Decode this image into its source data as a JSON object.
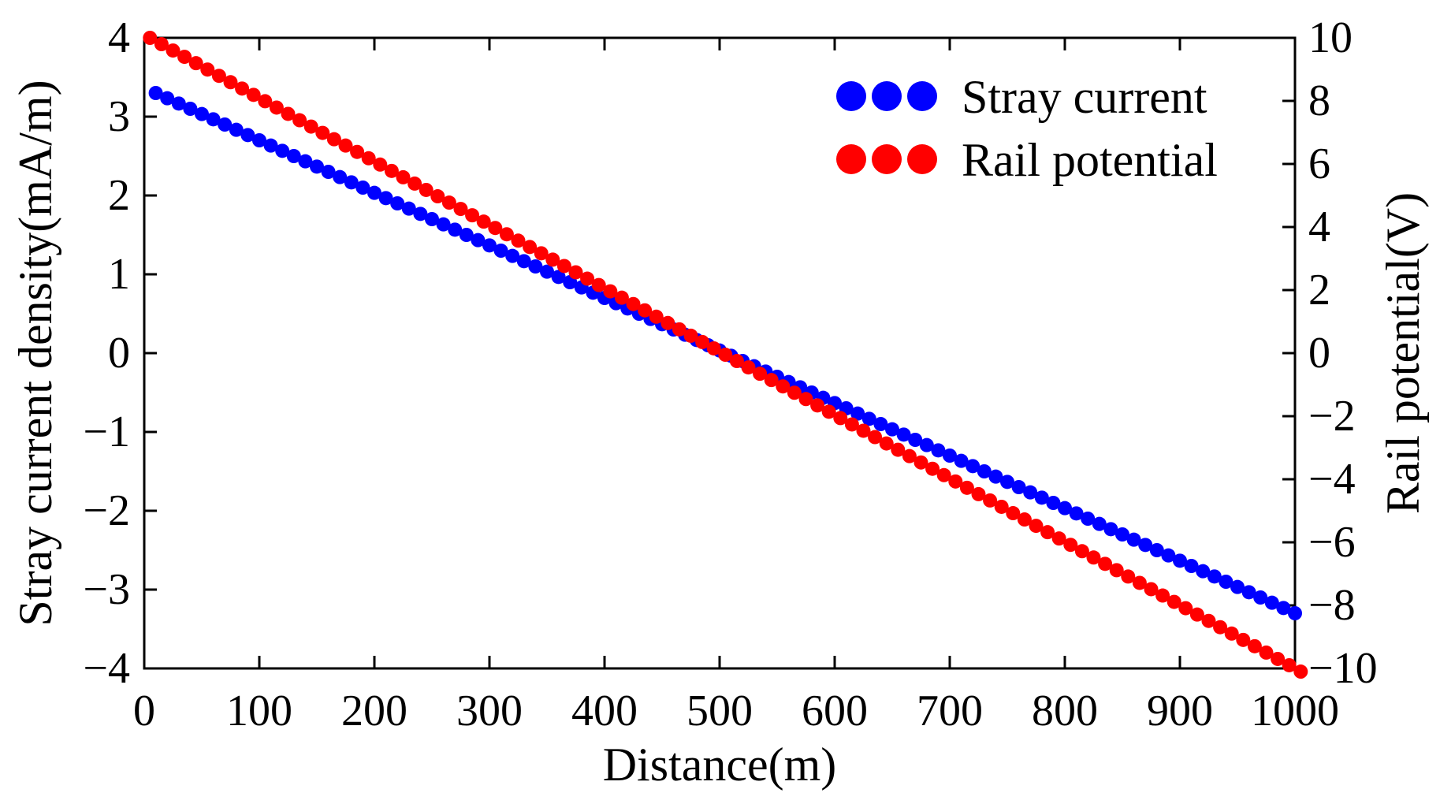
{
  "chart_data": {
    "type": "scatter",
    "xlabel": "Distance(m)",
    "ylabel_left": "Stray current density(mA/m)",
    "ylabel_right": "Rail potential(V)",
    "xlim": [
      0,
      1000
    ],
    "ylim_left": [
      -4,
      4
    ],
    "ylim_right": [
      -10,
      10
    ],
    "x_ticks": [
      "0",
      "100",
      "200",
      "300",
      "400",
      "500",
      "600",
      "700",
      "800",
      "900",
      "1000"
    ],
    "y_left_ticks": [
      "4",
      "3",
      "2",
      "1",
      "0",
      "−1",
      "−2",
      "−3",
      "−4"
    ],
    "y_right_ticks": [
      "10",
      "8",
      "6",
      "4",
      "2",
      "0",
      "−2",
      "−4",
      "−6",
      "−8",
      "−10"
    ],
    "legend_position": "top-right",
    "grid": false,
    "series": [
      {
        "name": "Stray current",
        "axis": "left",
        "color": "#0000ff",
        "x_start": 10,
        "x_end": 1000,
        "x_step": 10,
        "y_start": 3.3,
        "y_end": -3.3
      },
      {
        "name": "Rail potential",
        "axis": "right",
        "color": "#ff0000",
        "x_start": 5,
        "x_end": 1000,
        "x_step": 10,
        "y_start": 10.0,
        "y_end": -10.0
      }
    ]
  }
}
